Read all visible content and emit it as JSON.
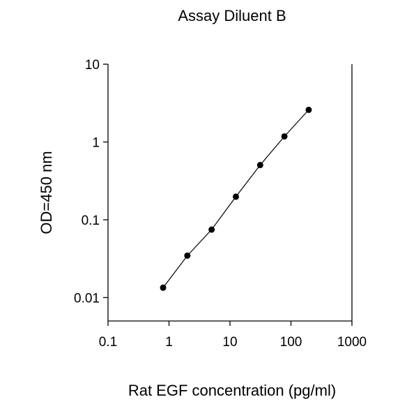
{
  "chart_data": {
    "type": "line",
    "title": "Assay Diluent B",
    "x_label": "Rat EGF concentration (pg/ml)",
    "y_label": "OD=450 nm",
    "x": [
      0.8,
      2,
      5,
      12.5,
      31.25,
      78.13,
      195.3
    ],
    "series": [
      {
        "values": [
          0.0134,
          0.0346,
          0.0748,
          0.198,
          0.505,
          1.18,
          2.59
        ],
        "color": "#000000"
      }
    ],
    "xscale": "log",
    "yscale": "log",
    "xlim": [
      0.1,
      1000
    ],
    "ylim": [
      0.005,
      10
    ],
    "xticks": [
      0.1,
      1,
      10,
      100,
      1000
    ],
    "yticks": [
      0.01,
      0.1,
      1,
      10
    ]
  }
}
